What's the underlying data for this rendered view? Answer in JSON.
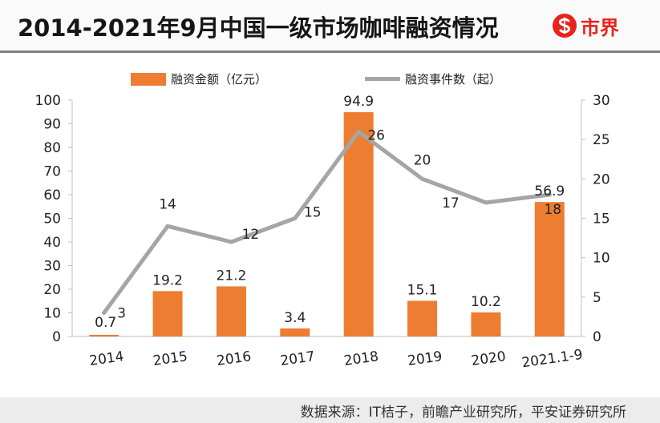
{
  "header": {
    "title": "2014-2021年9月中国一级市场咖啡融资情况",
    "logo_text": "市界",
    "logo_color": "#e8231c"
  },
  "legend": {
    "bar_label": "融资金额（亿元）",
    "line_label": "融资事件数（起）"
  },
  "chart_data": {
    "type": "bar",
    "categories": [
      "2014",
      "2015",
      "2016",
      "2017",
      "2018",
      "2019",
      "2020",
      "2021.1-9"
    ],
    "series": [
      {
        "name": "融资金额（亿元）",
        "type": "bar",
        "axis": "left",
        "color": "#ed7d31",
        "values": [
          0.7,
          19.2,
          21.2,
          3.4,
          94.9,
          15.1,
          10.2,
          56.9
        ]
      },
      {
        "name": "融资事件数（起）",
        "type": "line",
        "axis": "right",
        "color": "#a5a5a5",
        "values": [
          3,
          14,
          12,
          15,
          26,
          20,
          17,
          18
        ]
      }
    ],
    "left_axis": {
      "ylim": [
        0,
        100
      ],
      "ticks": [
        0,
        10,
        20,
        30,
        40,
        50,
        60,
        70,
        80,
        90,
        100
      ]
    },
    "right_axis": {
      "ylim": [
        0,
        30
      ],
      "ticks": [
        0,
        5,
        10,
        15,
        20,
        25,
        30
      ]
    },
    "grid": false,
    "legend_position": "top"
  },
  "footer": {
    "source": "数据来源：IT桔子，前瞻产业研究所，平安证券研究所"
  }
}
